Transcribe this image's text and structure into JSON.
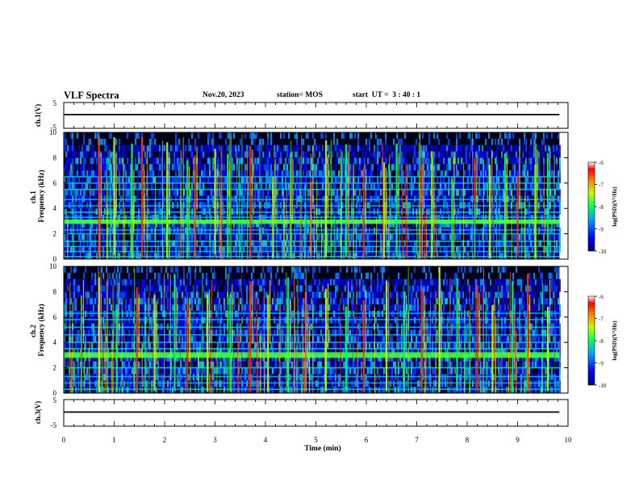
{
  "header": {
    "title": "VLF Spectra",
    "date": "Nov.20, 2023",
    "station": "station= MOS",
    "start": "start  UT =  3 : 40 : 1"
  },
  "chart_data": [
    {
      "type": "line",
      "name": "ch1-voltage",
      "ylabel": "ch.1(V)",
      "ylim": [
        -5,
        5
      ],
      "yticks": [
        "5",
        "-5"
      ],
      "series": [
        {
          "x": [
            0,
            9.83
          ],
          "y": [
            0,
            0
          ]
        }
      ]
    },
    {
      "type": "heatmap",
      "name": "ch1-spectrogram",
      "ylabel": "ch.1\nFrequency (kHz)",
      "ylim": [
        0,
        10
      ],
      "xlim": [
        0,
        9.83
      ],
      "yticks": [
        "0",
        "2",
        "4",
        "6",
        "8",
        "10"
      ],
      "colorbar": {
        "label": "log(PSD)(V²/Hz)",
        "range": [
          -10,
          -6
        ],
        "ticks": [
          "-6",
          "-7",
          "-8",
          "-9",
          "-10"
        ]
      },
      "bands_khz": [
        0.2,
        0.6,
        1.0,
        1.4,
        2.0,
        2.3,
        2.9,
        3.0,
        3.3,
        3.7,
        4.2,
        4.7,
        5.5,
        6.0,
        6.5
      ],
      "bursts_min": [
        0.7,
        1.0,
        1.35,
        1.55,
        2.05,
        2.45,
        2.6,
        3.0,
        3.25,
        3.7,
        4.15,
        4.5,
        4.9,
        5.2,
        5.6,
        5.95,
        6.35,
        6.6,
        7.1,
        7.3,
        7.7,
        8.15,
        8.45,
        8.75,
        9.0,
        9.35,
        9.6
      ]
    },
    {
      "type": "heatmap",
      "name": "ch2-spectrogram",
      "ylabel": "ch.2\nFrequency (kHz)",
      "ylim": [
        0,
        10
      ],
      "xlim": [
        0,
        9.83
      ],
      "yticks": [
        "0",
        "2",
        "4",
        "6",
        "8",
        "10"
      ],
      "colorbar": {
        "label": "log(PSD)(V²/Hz)",
        "range": [
          -10,
          -6
        ],
        "ticks": [
          "-6",
          "-7",
          "-8",
          "-9",
          "-10"
        ]
      },
      "bands_khz": [
        0.3,
        0.8,
        1.3,
        2.0,
        2.9,
        3.1,
        3.5,
        4.0,
        4.6,
        5.2,
        5.8,
        6.3
      ],
      "bursts_min": [
        0.35,
        0.7,
        1.05,
        1.45,
        1.8,
        2.2,
        2.45,
        2.85,
        3.3,
        3.7,
        4.05,
        4.45,
        4.8,
        5.2,
        5.6,
        5.95,
        6.4,
        6.75,
        7.1,
        7.45,
        7.8,
        8.2,
        8.5,
        8.9,
        9.2,
        9.6
      ]
    },
    {
      "type": "line",
      "name": "ch3-voltage",
      "ylabel": "ch.3(V)",
      "ylim": [
        -5,
        5
      ],
      "yticks": [
        "5",
        "-5"
      ],
      "series": [
        {
          "x": [
            0,
            9.83
          ],
          "y": [
            0,
            0
          ]
        }
      ]
    }
  ],
  "xaxis": {
    "label": "Time (min)",
    "xlim": [
      0,
      10
    ],
    "ticks": [
      "0",
      "1",
      "2",
      "3",
      "4",
      "5",
      "6",
      "7",
      "8",
      "9",
      "10"
    ]
  }
}
